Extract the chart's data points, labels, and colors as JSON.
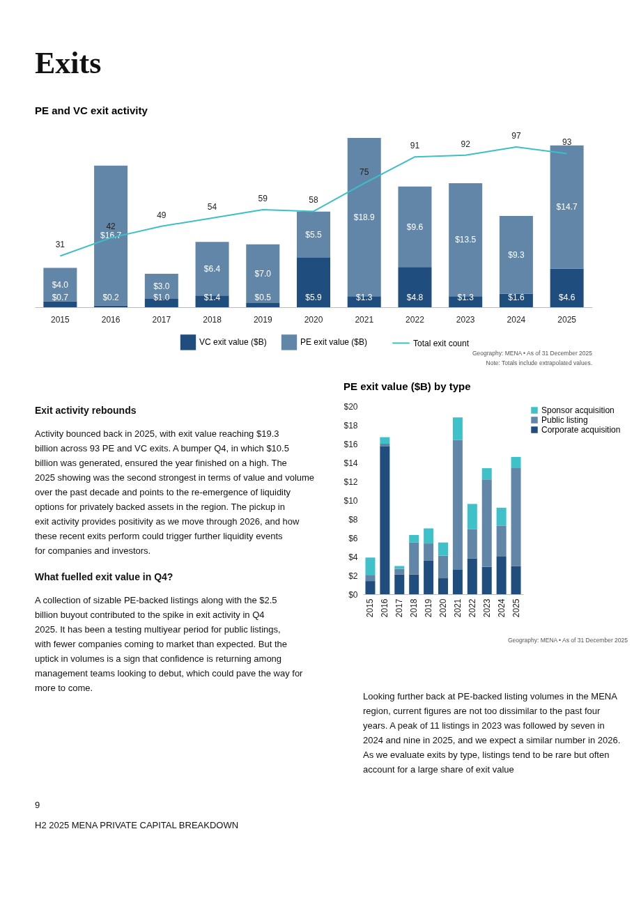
{
  "chart_data": [
    {
      "type": "other",
      "title": "Exits"
    },
    {
      "type": "bar",
      "title": "PE and VC exit activity",
      "stacked": true,
      "grid": false,
      "legend": "bottom",
      "categories": [
        "2015",
        "2016",
        "2017",
        "2018",
        "2019",
        "2020",
        "2021",
        "2022",
        "2023",
        "2024",
        "2025"
      ],
      "series": [
        {
          "name": "VC exit value ($B)",
          "color": "#1f4e7e",
          "values": [
            0.7,
            0.2,
            1.0,
            1.4,
            0.5,
            5.9,
            1.3,
            4.8,
            1.3,
            1.6,
            4.6
          ],
          "value_labels": [
            "$0.7",
            "$0.2",
            "$1.0",
            "$1.4",
            "$0.5",
            "$5.9",
            "$1.3",
            "$4.8",
            "$1.3",
            "$1.6",
            "$4.6"
          ]
        },
        {
          "name": "PE exit value ($B)",
          "color": "#6186a8",
          "values": [
            4.0,
            16.7,
            3.0,
            6.4,
            7.0,
            5.5,
            18.9,
            9.6,
            13.5,
            9.3,
            14.7
          ],
          "value_labels": [
            "$4.0",
            "$16.7",
            "$3.0",
            "$6.4",
            "$7.0",
            "$5.5",
            "$18.9",
            "$9.6",
            "$13.5",
            "$9.3",
            "$14.7"
          ]
        },
        {
          "name": "Total exit count",
          "type": "line",
          "axis": "y2",
          "line_style": "solid",
          "color": "#3dbfc8",
          "values": [
            31,
            42,
            49,
            54,
            59,
            58,
            75,
            91,
            92,
            97,
            93
          ],
          "value_labels": [
            "31",
            "42",
            "49",
            "54",
            "59",
            "58",
            "75",
            "91",
            "92",
            "97",
            "93"
          ]
        }
      ],
      "annotations": [
        "Geography: MENA • As of 31 December 2025",
        "Note: Totals include extrapolated values."
      ]
    },
    {
      "type": "other",
      "title": "Exit activity rebounds",
      "annotations": [
        "Activity bounced back in 2025, with exit value reaching $19.3 billion across 93 PE and VC exits. A bumper Q4, in which $10.5 billion was generated, ensured the year finished on a high. The 2025 showing was the second strongest in terms of value and volume over the past decade and points to the re-emergence of liquidity options for privately backed assets in the region. The pickup in exit activity provides positivity as we move through 2026, and how these recent exits perform could trigger further liquidity events for companies and investors."
      ]
    },
    {
      "type": "other",
      "title": "What fuelled exit value in Q4?",
      "annotations": [
        "A collection of sizable PE-backed listings along with the $2.5 billion buyout contributed to the spike in exit activity in Q4 2025. It has been a testing multiyear period for public listings, with fewer companies coming to market than expected. But the uptick in volumes is a sign that confidence is returning among management teams looking to debut, which could pave the way for more to come."
      ]
    },
    {
      "type": "bar",
      "title": "PE exit value ($B) by type",
      "stacked": true,
      "grid": false,
      "legend": "right",
      "categories": [
        "2015",
        "2016",
        "2017",
        "2018",
        "2019",
        "2020",
        "2021",
        "2022",
        "2023",
        "2024",
        "2025"
      ],
      "series": [
        {
          "name": "Corporate acquisition",
          "color": "#1f4e7e",
          "values": [
            1.4,
            15.7,
            2.1,
            2.1,
            3.6,
            1.7,
            2.6,
            3.8,
            2.9,
            4.0,
            3.0
          ]
        },
        {
          "name": "Public listing",
          "color": "#6186a8",
          "values": [
            0.6,
            0.3,
            0.6,
            3.4,
            1.8,
            2.4,
            13.8,
            3.1,
            9.3,
            3.3,
            10.4
          ]
        },
        {
          "name": "Sponsor acquisition",
          "color": "#3fc1c9",
          "values": [
            1.9,
            0.7,
            0.3,
            0.8,
            1.6,
            1.4,
            2.4,
            2.7,
            1.2,
            1.9,
            1.2
          ]
        }
      ],
      "ylim": [
        0,
        20
      ],
      "yticks": [
        {
          "value": 0,
          "label": "$0"
        },
        {
          "value": 2,
          "label": "$2"
        },
        {
          "value": 4,
          "label": "$4"
        },
        {
          "value": 6,
          "label": "$6"
        },
        {
          "value": 8,
          "label": "$8"
        },
        {
          "value": 10,
          "label": "$10"
        },
        {
          "value": 12,
          "label": "$12"
        },
        {
          "value": 14,
          "label": "$14"
        },
        {
          "value": 16,
          "label": "$16"
        },
        {
          "value": 18,
          "label": "$18"
        },
        {
          "value": 20,
          "label": "$20"
        }
      ],
      "annotations": [
        "Geography: MENA • As of 31 December 2025"
      ]
    },
    {
      "type": "other",
      "annotations": [
        "Looking further back at PE-backed listing volumes in the MENA region, current figures are not too dissimilar to the past four years. A peak of 11 listings in 2023 was followed by seven in 2024 and nine in 2025, and we expect a similar number in 2026. As we evaluate exits by type, listings tend to be rare but often account for a large share of exit value"
      ]
    },
    {
      "type": "other",
      "annotations": [
        "9",
        "H2 2025 MENA PRIVATE CAPITAL BREAKDOWN"
      ]
    }
  ]
}
